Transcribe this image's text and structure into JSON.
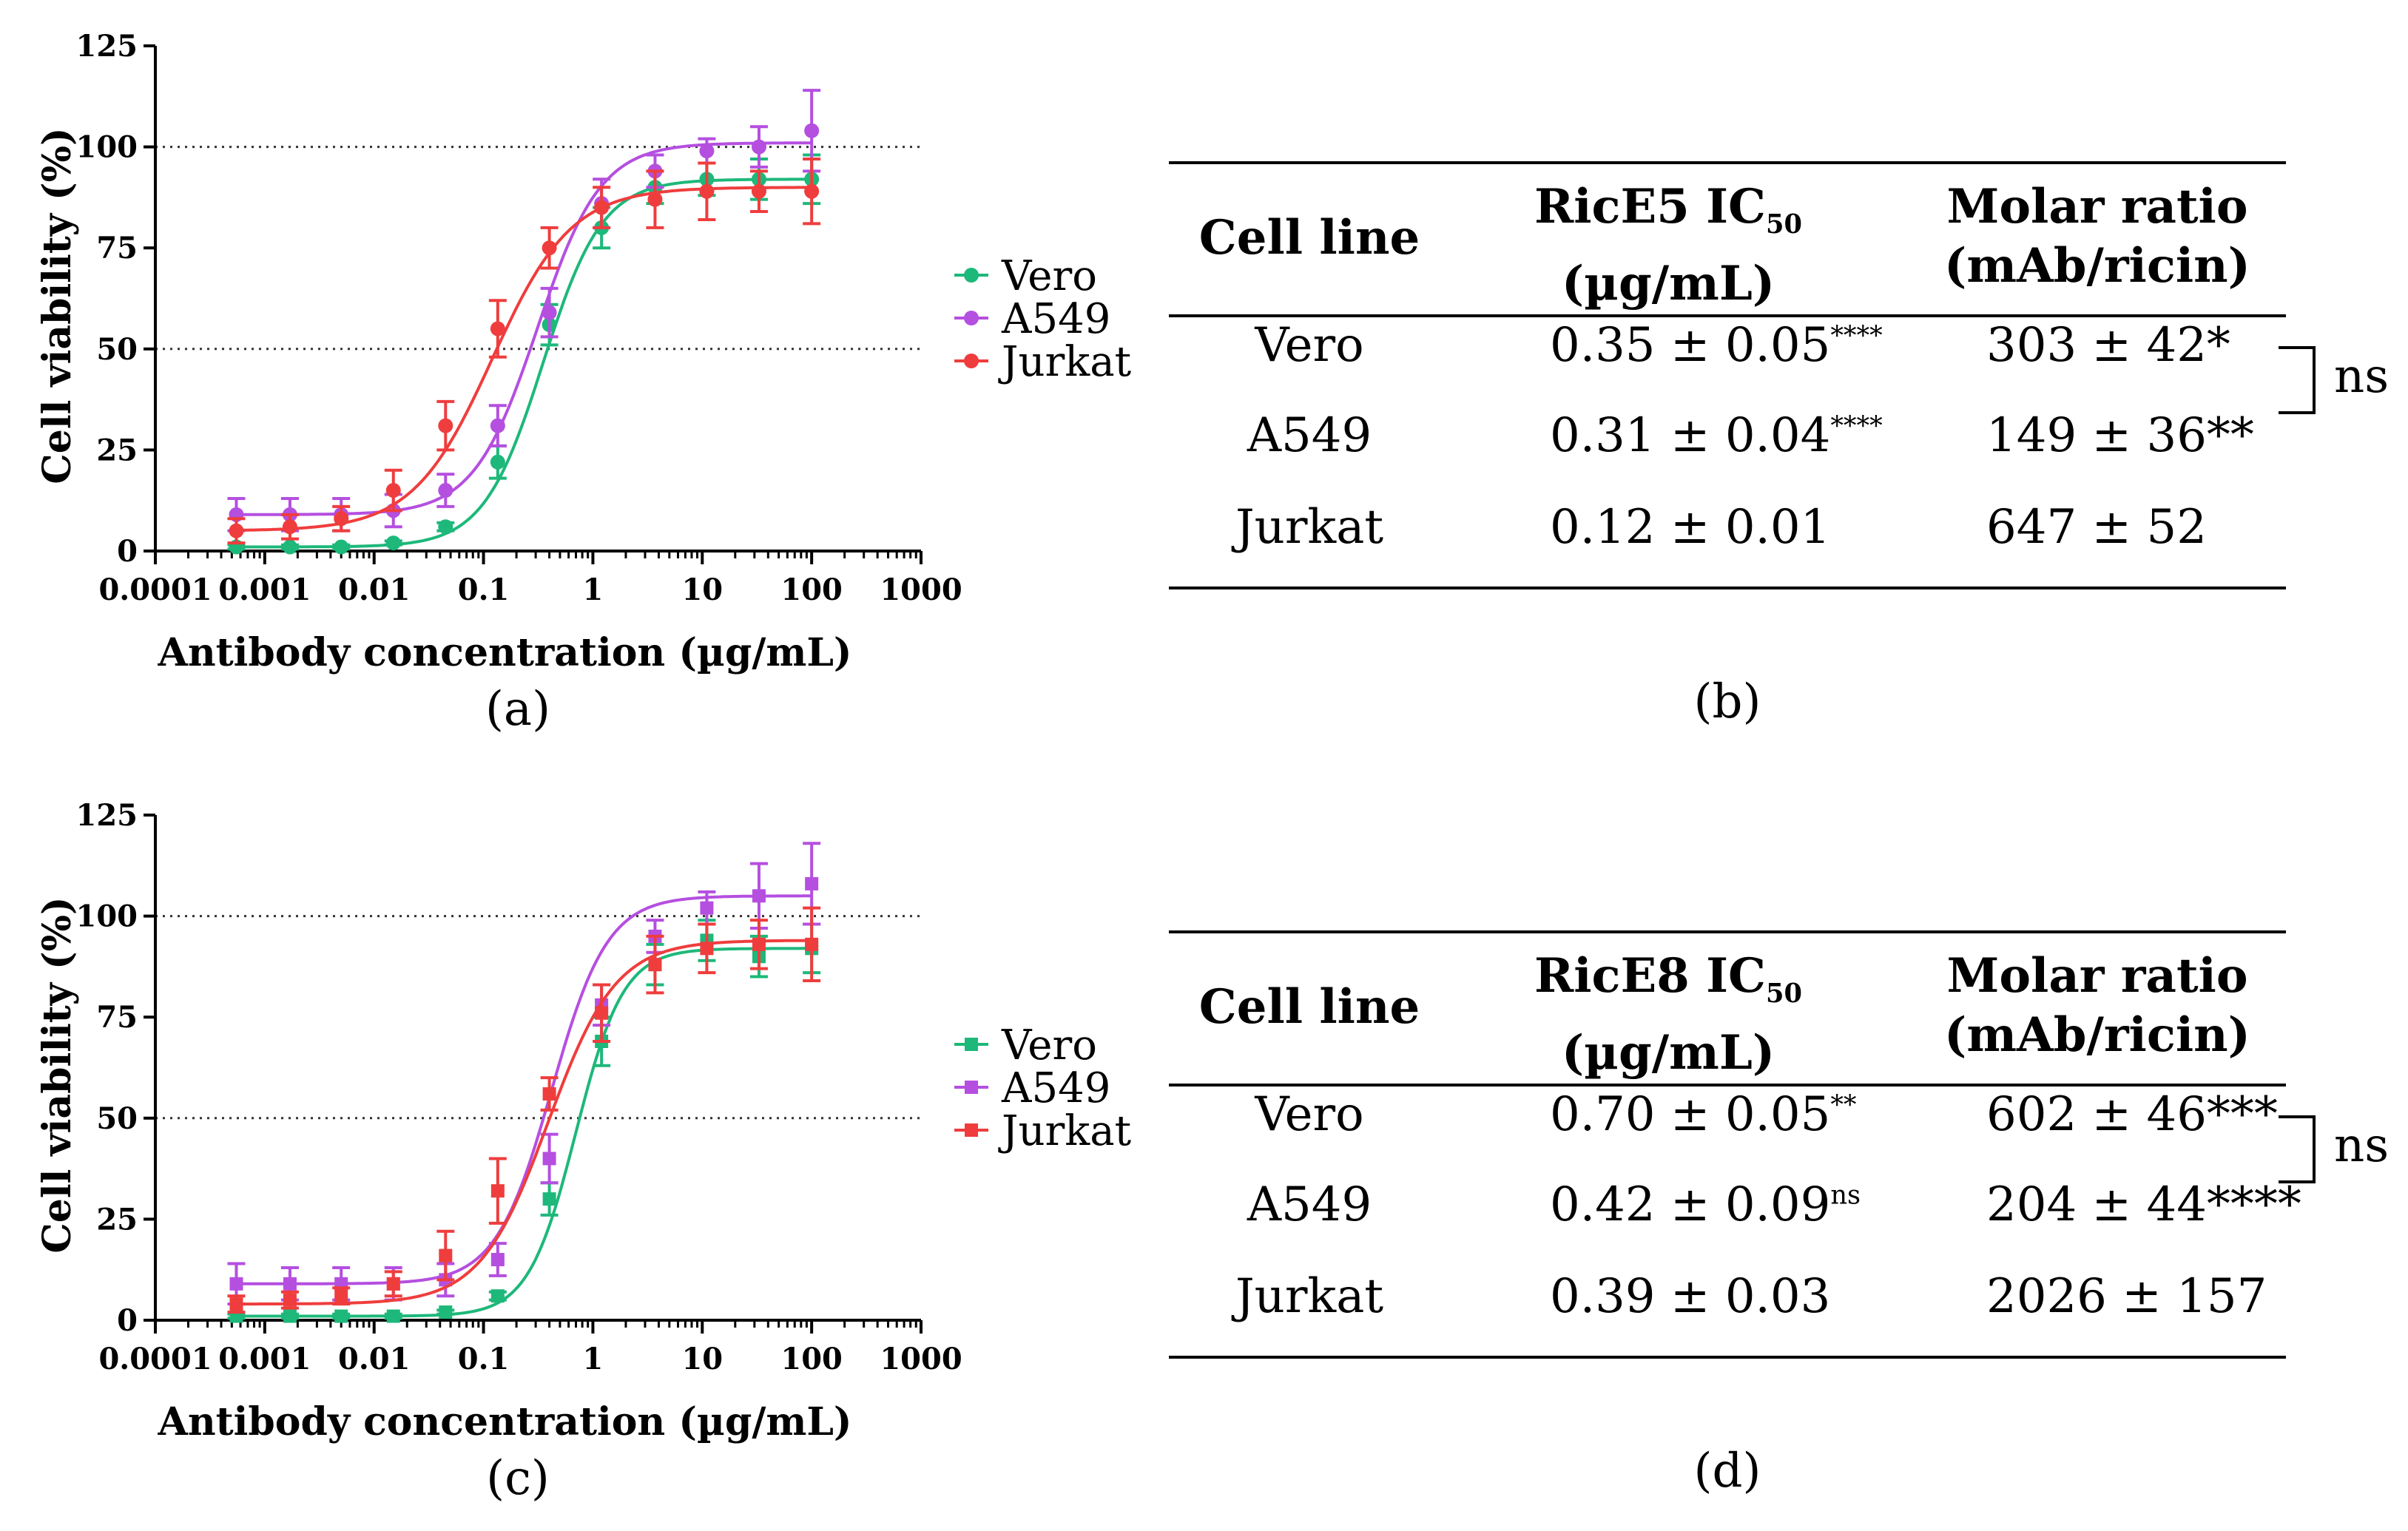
{
  "chart_data": [
    {
      "type": "scatter",
      "panel_label": "(a)",
      "xlabel": "Antibody concentration (µg/mL)",
      "ylabel": "Cell viability (%)",
      "x_scale": "log",
      "xlim": [
        0.0001,
        1000
      ],
      "ylim": [
        0,
        125
      ],
      "x_ticks": [
        "0.0001",
        "0.001",
        "0.01",
        "0.1",
        "1",
        "10",
        "100",
        "1000"
      ],
      "y_ticks": [
        "0",
        "25",
        "50",
        "75",
        "100",
        "125"
      ],
      "reference_lines": [
        50,
        100
      ],
      "legend_position": "right",
      "marker": "circle",
      "x": [
        0.00055,
        0.0017,
        0.005,
        0.015,
        0.045,
        0.135,
        0.4,
        1.2,
        3.7,
        11,
        33,
        100
      ],
      "series": [
        {
          "name": "Vero",
          "color": "#1db87a",
          "values": [
            1,
            1,
            1,
            2,
            6,
            22,
            56,
            80,
            90,
            92,
            92,
            92
          ],
          "errors": [
            0.5,
            0.5,
            0.5,
            0.5,
            1,
            4,
            5,
            5,
            4,
            4,
            5,
            6
          ],
          "fit": {
            "bottom": 1,
            "top": 92,
            "ic50": 0.35,
            "hill": 1.6
          }
        },
        {
          "name": "A549",
          "color": "#b54fe0",
          "values": [
            9,
            9,
            9,
            10,
            15,
            31,
            59,
            86,
            94,
            99,
            100,
            104
          ],
          "errors": [
            4,
            4,
            4,
            4,
            4,
            5,
            6,
            6,
            4,
            3,
            5,
            10
          ],
          "fit": {
            "bottom": 9,
            "top": 101,
            "ic50": 0.31,
            "hill": 1.5
          }
        },
        {
          "name": "Jurkat",
          "color": "#ef3d3d",
          "values": [
            5,
            6,
            8,
            15,
            31,
            55,
            75,
            85,
            87,
            89,
            89,
            89
          ],
          "errors": [
            3,
            3,
            3,
            5,
            6,
            7,
            5,
            5,
            7,
            7,
            5,
            8
          ],
          "fit": {
            "bottom": 5,
            "top": 90,
            "ic50": 0.12,
            "hill": 1.2
          }
        }
      ]
    },
    {
      "type": "scatter",
      "panel_label": "(c)",
      "xlabel": "Antibody concentration (µg/mL)",
      "ylabel": "Cell viability (%)",
      "x_scale": "log",
      "xlim": [
        0.0001,
        1000
      ],
      "ylim": [
        0,
        125
      ],
      "x_ticks": [
        "0.0001",
        "0.001",
        "0.01",
        "0.1",
        "1",
        "10",
        "100",
        "1000"
      ],
      "y_ticks": [
        "0",
        "25",
        "50",
        "75",
        "100",
        "125"
      ],
      "reference_lines": [
        50,
        100
      ],
      "legend_position": "right",
      "marker": "square",
      "x": [
        0.00055,
        0.0017,
        0.005,
        0.015,
        0.045,
        0.135,
        0.4,
        1.2,
        3.7,
        11,
        33,
        100
      ],
      "series": [
        {
          "name": "Vero",
          "color": "#1db87a",
          "values": [
            1,
            1,
            1,
            1,
            2,
            6,
            30,
            69,
            88,
            94,
            90,
            92
          ],
          "errors": [
            0.5,
            0.5,
            0.5,
            0.5,
            0.5,
            1,
            4,
            6,
            5,
            5,
            5,
            6
          ],
          "fit": {
            "bottom": 1,
            "top": 92,
            "ic50": 0.7,
            "hill": 2.0
          }
        },
        {
          "name": "A549",
          "color": "#b54fe0",
          "values": [
            9,
            9,
            9,
            9,
            10,
            15,
            40,
            78,
            95,
            102,
            105,
            108
          ],
          "errors": [
            5,
            4,
            4,
            4,
            4,
            4,
            6,
            5,
            4,
            4,
            8,
            10
          ],
          "fit": {
            "bottom": 9,
            "top": 105,
            "ic50": 0.42,
            "hill": 1.7
          }
        },
        {
          "name": "Jurkat",
          "color": "#ef3d3d",
          "values": [
            4,
            5,
            6,
            9,
            16,
            32,
            56,
            76,
            88,
            92,
            93,
            93
          ],
          "errors": [
            2,
            2,
            2,
            3,
            6,
            8,
            4,
            7,
            7,
            6,
            6,
            9
          ],
          "fit": {
            "bottom": 4,
            "top": 94,
            "ic50": 0.39,
            "hill": 1.4
          }
        }
      ]
    },
    {
      "type": "table",
      "panel_label": "(b)",
      "columns": [
        {
          "main": "Cell line",
          "line2": ""
        },
        {
          "main": "RicE5 IC",
          "sub": "50",
          "line2": "(µg/mL)"
        },
        {
          "main": "Molar ratio",
          "line2": "(mAb/ricin)"
        }
      ],
      "rows": [
        {
          "cell_line": "Vero",
          "ic50": "0.35 ± 0.05",
          "ic50_sig": "****",
          "molar": "303 ± 42",
          "molar_sig": "*"
        },
        {
          "cell_line": "A549",
          "ic50": "0.31 ± 0.04",
          "ic50_sig": "****",
          "molar": "149 ± 36",
          "molar_sig": "**"
        },
        {
          "cell_line": "Jurkat",
          "ic50": "0.12 ± 0.01",
          "ic50_sig": "",
          "molar": "647 ± 52",
          "molar_sig": ""
        }
      ],
      "bracket_label": "ns"
    },
    {
      "type": "table",
      "panel_label": "(d)",
      "columns": [
        {
          "main": "Cell line",
          "line2": ""
        },
        {
          "main": "RicE8 IC",
          "sub": "50",
          "line2": "(µg/mL)"
        },
        {
          "main": "Molar ratio",
          "line2": "(mAb/ricin)"
        }
      ],
      "rows": [
        {
          "cell_line": "Vero",
          "ic50": "0.70 ± 0.05",
          "ic50_sig": "**",
          "molar": "602 ± 46",
          "molar_sig": "***"
        },
        {
          "cell_line": "A549",
          "ic50": "0.42 ± 0.09",
          "ic50_sig": "ns",
          "molar": "204 ± 44",
          "molar_sig": "****"
        },
        {
          "cell_line": "Jurkat",
          "ic50": "0.39 ± 0.03",
          "ic50_sig": "",
          "molar": "2026 ± 157",
          "molar_sig": ""
        }
      ],
      "bracket_label": "ns"
    }
  ]
}
